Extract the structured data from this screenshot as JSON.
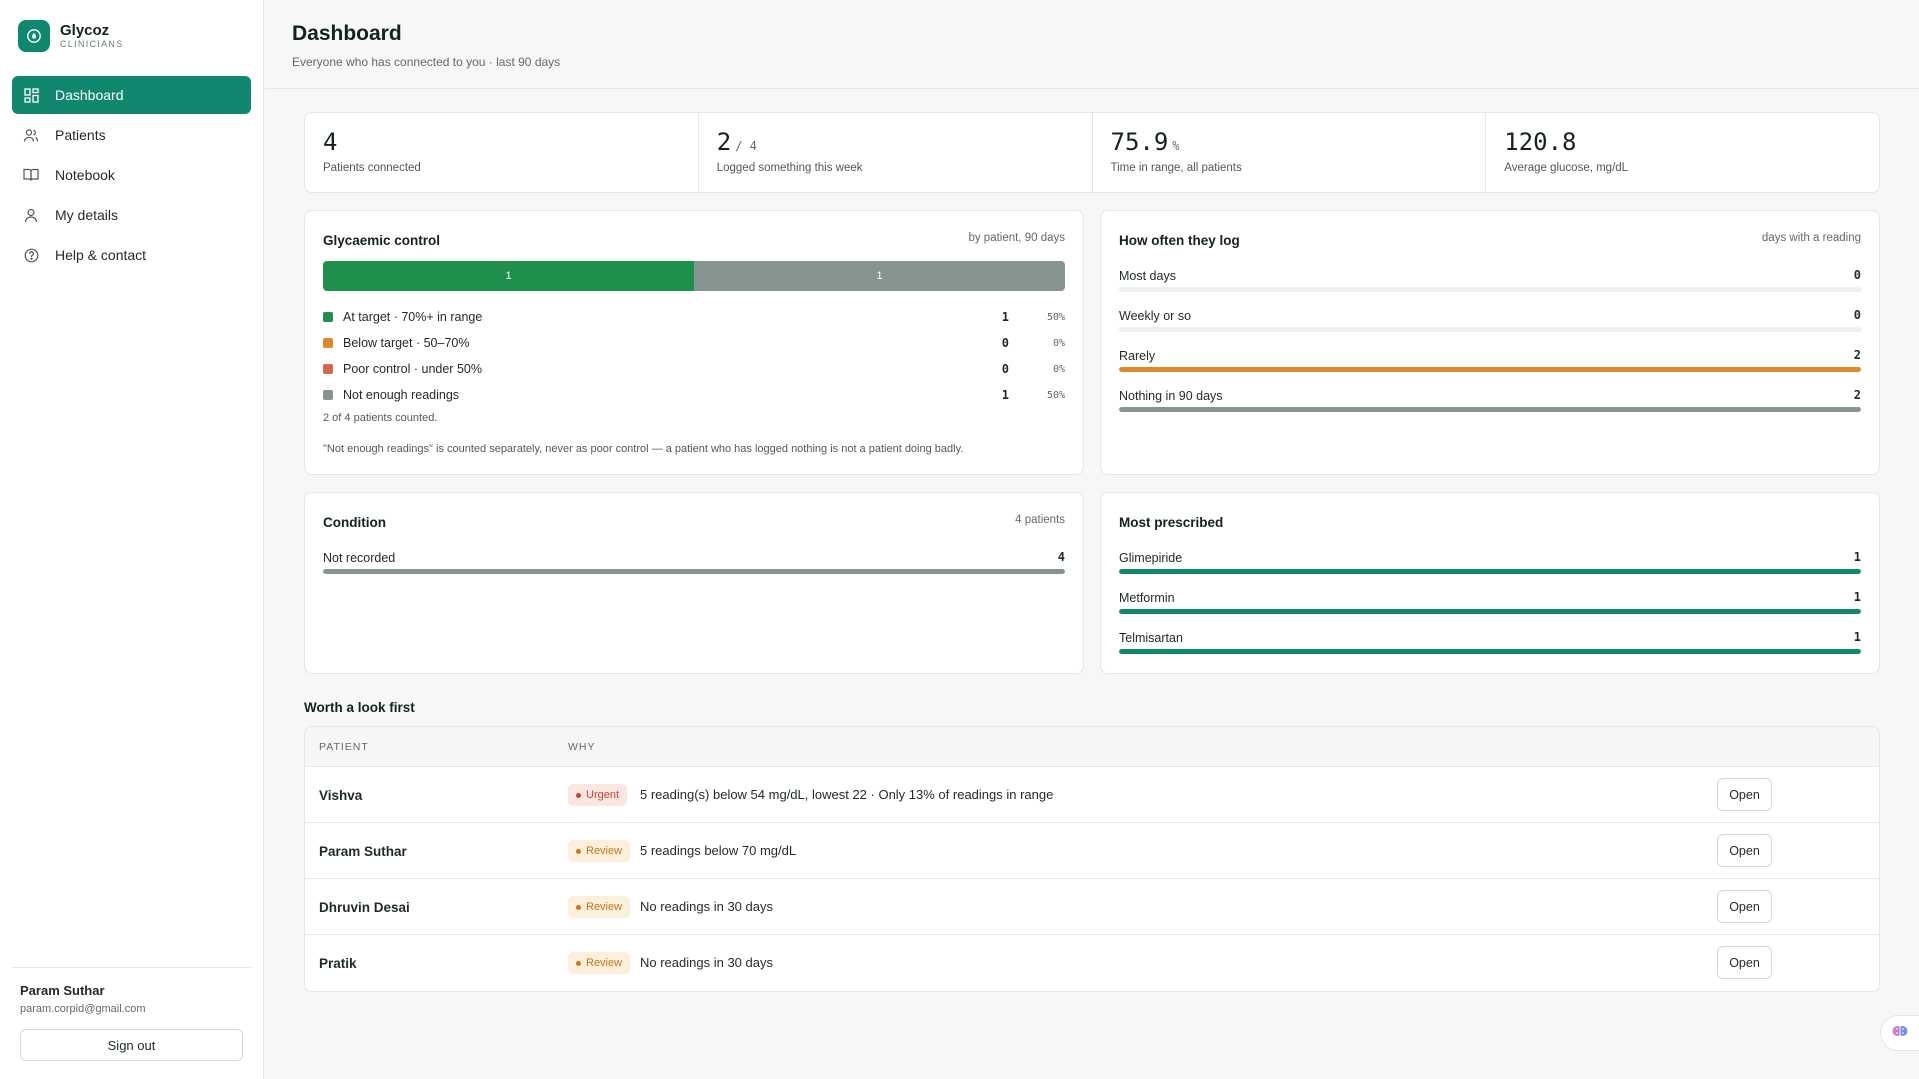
{
  "brand": {
    "name": "Glycoz",
    "sub": "CLINICIANS"
  },
  "nav": [
    {
      "label": "Dashboard",
      "icon": "dashboard-icon",
      "active": true
    },
    {
      "label": "Patients",
      "icon": "users-icon"
    },
    {
      "label": "Notebook",
      "icon": "book-icon"
    },
    {
      "label": "My details",
      "icon": "user-icon"
    },
    {
      "label": "Help & contact",
      "icon": "help-icon"
    }
  ],
  "user": {
    "name": "Param Suthar",
    "email": "param.corpid@gmail.com",
    "signout": "Sign out"
  },
  "header": {
    "title": "Dashboard",
    "subtitle": "Everyone who has connected to you · last 90 days"
  },
  "stats": [
    {
      "value": "4",
      "suffix": "",
      "label": "Patients connected"
    },
    {
      "value": "2",
      "suffix": "/ 4",
      "label": "Logged something this week"
    },
    {
      "value": "75.9",
      "suffix": "%",
      "label": "Time in range, all patients"
    },
    {
      "value": "120.8",
      "suffix": "",
      "label": "Average glucose, mg/dL"
    }
  ],
  "glycaemic": {
    "title": "Glycaemic control",
    "note": "by patient, 90 days",
    "bar_labels": [
      "1",
      "1"
    ],
    "rows": [
      {
        "label": "At target · 70%+ in range",
        "count": "1",
        "pct": "50%",
        "color": "#1f8f4e"
      },
      {
        "label": "Below target · 50–70%",
        "count": "0",
        "pct": "0%",
        "color": "#dd8a2b"
      },
      {
        "label": "Poor control · under 50%",
        "count": "0",
        "pct": "0%",
        "color": "#cf6a4f"
      },
      {
        "label": "Not enough readings",
        "count": "1",
        "pct": "50%",
        "color": "#879591"
      }
    ],
    "counted": "2 of 4 patients counted.",
    "footnote": "\"Not enough readings\" is counted separately, never as poor control — a patient who has logged nothing is not a patient doing badly."
  },
  "log_frequency": {
    "title": "How often they log",
    "note": "days with a reading",
    "rows": [
      {
        "label": "Most days",
        "value": "0",
        "fill": 0,
        "color": "#eef0ef"
      },
      {
        "label": "Weekly or so",
        "value": "0",
        "fill": 0,
        "color": "#eef0ef"
      },
      {
        "label": "Rarely",
        "value": "2",
        "fill": 1,
        "color": "#dd8a2b"
      },
      {
        "label": "Nothing in 90 days",
        "value": "2",
        "fill": 1,
        "color": "#879591"
      }
    ]
  },
  "condition": {
    "title": "Condition",
    "note": "4 patients",
    "rows": [
      {
        "label": "Not recorded",
        "value": "4",
        "fill": 1,
        "color": "#879591"
      }
    ]
  },
  "prescribed": {
    "title": "Most prescribed",
    "rows": [
      {
        "label": "Glimepiride",
        "value": "1",
        "fill": 1,
        "color": "#12876f"
      },
      {
        "label": "Metformin",
        "value": "1",
        "fill": 1,
        "color": "#12876f"
      },
      {
        "label": "Telmisartan",
        "value": "1",
        "fill": 1,
        "color": "#12876f"
      }
    ]
  },
  "worth_look": {
    "title": "Worth a look first",
    "col_patient": "PATIENT",
    "col_why": "WHY",
    "open_label": "Open",
    "rows": [
      {
        "name": "Vishva",
        "badge": "Urgent",
        "kind": "urgent",
        "reason": "5 reading(s) below 54 mg/dL, lowest 22 · Only 13% of readings in range"
      },
      {
        "name": "Param Suthar",
        "badge": "Review",
        "kind": "review",
        "reason": "5 readings below 70 mg/dL"
      },
      {
        "name": "Dhruvin Desai",
        "badge": "Review",
        "kind": "review",
        "reason": "No readings in 30 days"
      },
      {
        "name": "Pratik",
        "badge": "Review",
        "kind": "review",
        "reason": "No readings in 30 days"
      }
    ]
  },
  "colors": {
    "brand": "#12876f",
    "at_target": "#1f8f4e",
    "not_enough": "#879591"
  }
}
